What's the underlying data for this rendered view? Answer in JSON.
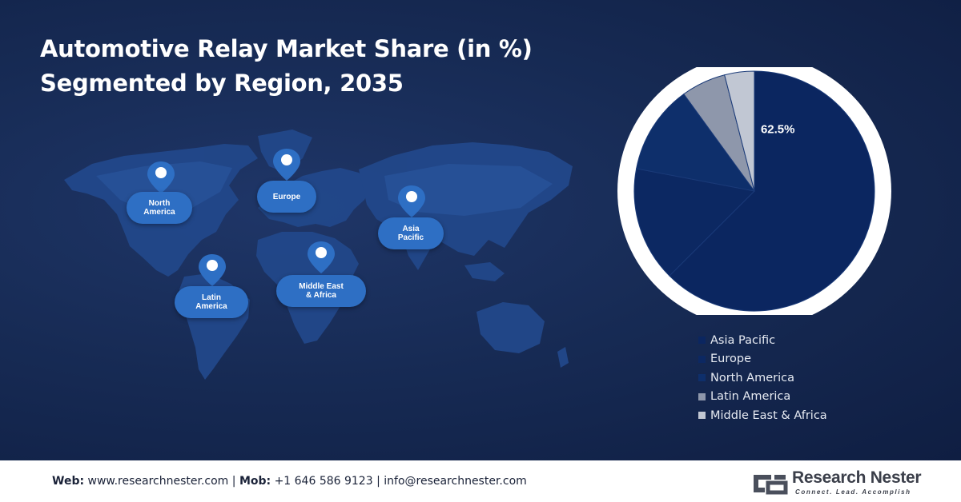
{
  "title": {
    "line1": "Automotive Relay Market Share (in %)",
    "line2": "Segmented by Region, 2035"
  },
  "map_labels": {
    "north_america": "North\nAmerica",
    "europe": "Europe",
    "asia_pacific": "Asia\nPacific",
    "latin_america": "Latin\nAmerica",
    "middle_east_africa": "Middle East\n& Africa"
  },
  "chart_data": {
    "type": "pie",
    "title": "Automotive Relay Market Share (in %) Segmented by Region, 2035",
    "slices": [
      {
        "label": "Asia Pacific",
        "value": 62.5,
        "color": "#0b2660",
        "data_label": "62.5%"
      },
      {
        "label": "Europe",
        "value": 15.5,
        "color": "#0c2862"
      },
      {
        "label": "North America",
        "value": 12.0,
        "color": "#0e2f6b"
      },
      {
        "label": "Latin America",
        "value": 6.0,
        "color": "#8e97ab"
      },
      {
        "label": "Middle East & Africa",
        "value": 4.0,
        "color": "#c1c7d3"
      }
    ],
    "legend": [
      "Asia Pacific",
      "Europe",
      "North America",
      "Latin America",
      "Middle East & Africa"
    ],
    "legend_position": "bottom",
    "start_angle_deg": 0,
    "direction": "clockwise"
  },
  "footer": {
    "web_label": "Web:",
    "web_value": "www.researchnester.com",
    "mob_label": "Mob:",
    "mob_value": "+1 646 586 9123",
    "email": "info@researchnester.com",
    "separator": "|",
    "brand_name": "Research Nester",
    "brand_tagline": "Connect. Lead. Accomplish"
  },
  "colors": {
    "background": "#172b55",
    "pin": "#2e6fc4",
    "map_land": "#224a8a"
  }
}
